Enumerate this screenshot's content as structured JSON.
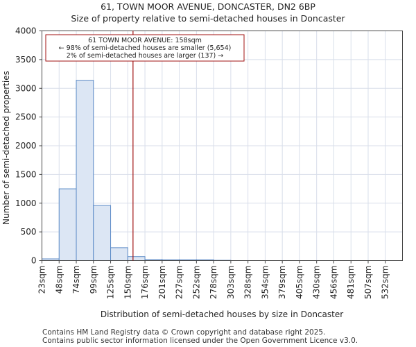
{
  "chart_data": {
    "type": "bar",
    "title": "61, TOWN MOOR AVENUE, DONCASTER, DN2 6BP",
    "subtitle": "Size of property relative to semi-detached houses in Doncaster",
    "xlabel": "Distribution of semi-detached houses by size in Doncaster",
    "ylabel": "Number of semi-detached properties",
    "ylim": [
      0,
      4000
    ],
    "yticks": [
      0,
      500,
      1000,
      1500,
      2000,
      2500,
      3000,
      3500,
      4000
    ],
    "categories": [
      "23sqm",
      "48sqm",
      "74sqm",
      "99sqm",
      "125sqm",
      "150sqm",
      "176sqm",
      "201sqm",
      "227sqm",
      "252sqm",
      "278sqm",
      "303sqm",
      "328sqm",
      "354sqm",
      "379sqm",
      "405sqm",
      "430sqm",
      "456sqm",
      "481sqm",
      "507sqm",
      "532sqm"
    ],
    "values": [
      30,
      1250,
      3140,
      960,
      225,
      70,
      20,
      15,
      15,
      15,
      5,
      0,
      0,
      0,
      0,
      0,
      0,
      0,
      0,
      0,
      0
    ],
    "marker": {
      "value": 158,
      "label": "61 TOWN MOOR AVENUE: 158sqm"
    },
    "annotation": {
      "line1": "61 TOWN MOOR AVENUE: 158sqm",
      "line2": "← 98% of semi-detached houses are smaller (5,654)",
      "line3": "2% of semi-detached houses are larger (137) →"
    },
    "colors": {
      "bar_fill": "#dce6f4",
      "bar_edge": "#5b8ac6",
      "marker": "#a01010",
      "grid": "#d8deea"
    }
  },
  "footer": {
    "credit1": "Contains HM Land Registry data © Crown copyright and database right 2025.",
    "credit2": "Contains public sector information licensed under the Open Government Licence v3.0."
  }
}
